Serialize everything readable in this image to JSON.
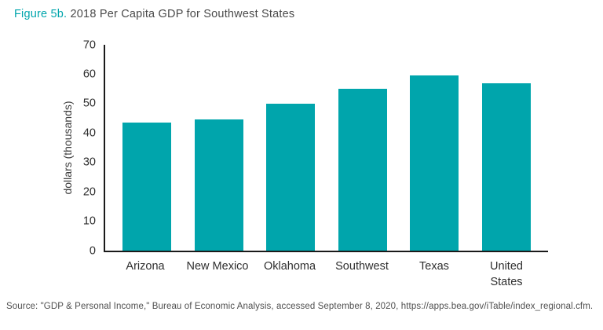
{
  "title": {
    "prefix": "Figure 5b.",
    "text": "2018 Per Capita GDP for Southwest States"
  },
  "colors": {
    "bar": "#00a5ac",
    "title_prefix": "#00a5ac",
    "axis": "#1a1a1a",
    "text": "#3d3d3d"
  },
  "chart_data": {
    "type": "bar",
    "title": "Figure 5b. 2018 Per Capita GDP for Southwest States",
    "xlabel": "",
    "ylabel": "dollars (thousands)",
    "categories": [
      "Arizona",
      "New Mexico",
      "Oklahoma",
      "Southwest",
      "Texas",
      "United States"
    ],
    "values": [
      43.5,
      44.5,
      50,
      55,
      59.5,
      57
    ],
    "ylim": [
      0,
      70
    ],
    "yticks": [
      0,
      10,
      20,
      30,
      40,
      50,
      60,
      70
    ],
    "grid": false,
    "legend": "none",
    "bar_color": "#00a5ac"
  },
  "source": "Source: \"GDP & Personal Income,\" Bureau of Economic Analysis, accessed September 8, 2020, https://apps.bea.gov/iTable/index_regional.cfm."
}
